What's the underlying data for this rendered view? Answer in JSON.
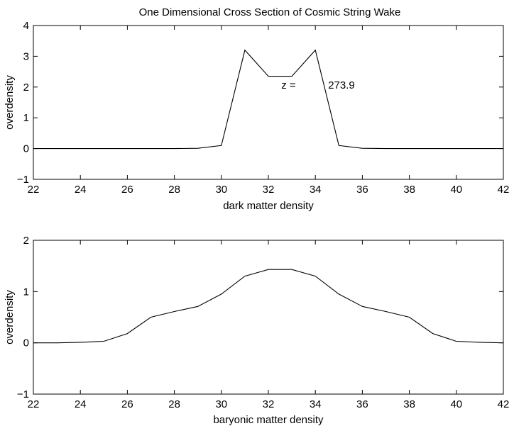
{
  "figure": {
    "title": "One Dimensional Cross Section of Cosmic String Wake"
  },
  "chart_data": [
    {
      "type": "line",
      "title": "One Dimensional Cross Section of Cosmic String Wake",
      "xlabel": "dark matter density",
      "ylabel": "overdensity",
      "xlim": [
        22,
        42
      ],
      "ylim": [
        -1,
        4
      ],
      "xticks": [
        22,
        24,
        26,
        28,
        30,
        32,
        34,
        36,
        38,
        40,
        42
      ],
      "yticks": [
        -1,
        0,
        1,
        2,
        3,
        4
      ],
      "grid": false,
      "annotation": {
        "label": "z =",
        "value": "273.9",
        "x": 32.55,
        "y": 1.95
      },
      "series": [
        {
          "name": "dark matter",
          "x": [
            22,
            23,
            24,
            25,
            26,
            27,
            28,
            29,
            30,
            31,
            32,
            33,
            34,
            35,
            36,
            37,
            38,
            39,
            40,
            41,
            42
          ],
          "y": [
            0,
            0,
            0,
            0,
            0,
            0,
            0,
            0.01,
            0.1,
            3.2,
            2.35,
            2.35,
            3.2,
            0.1,
            0.01,
            0,
            0,
            0,
            0,
            0,
            0
          ]
        }
      ]
    },
    {
      "type": "line",
      "title": "",
      "xlabel": "baryonic matter density",
      "ylabel": "overdensity",
      "xlim": [
        22,
        42
      ],
      "ylim": [
        -1,
        2
      ],
      "xticks": [
        22,
        24,
        26,
        28,
        30,
        32,
        34,
        36,
        38,
        40,
        42
      ],
      "yticks": [
        -1,
        0,
        1,
        2
      ],
      "grid": false,
      "series": [
        {
          "name": "baryonic matter",
          "x": [
            22,
            23,
            24,
            25,
            26,
            27,
            28,
            29,
            30,
            31,
            32,
            33,
            34,
            35,
            36,
            37,
            38,
            39,
            40,
            41,
            42
          ],
          "y": [
            0,
            0,
            0.01,
            0.03,
            0.18,
            0.5,
            0.61,
            0.71,
            0.95,
            1.3,
            1.43,
            1.43,
            1.3,
            0.95,
            0.71,
            0.61,
            0.5,
            0.18,
            0.03,
            0.01,
            0
          ]
        }
      ]
    }
  ]
}
